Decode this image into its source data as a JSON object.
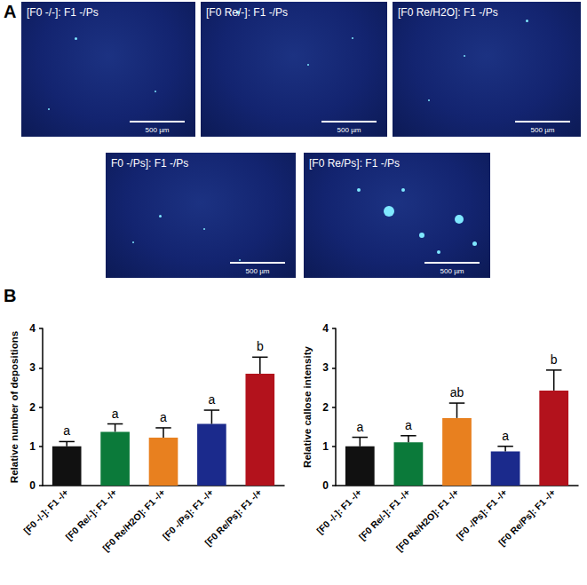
{
  "panel_a": {
    "label": "A",
    "images": [
      "[F0 -/-]: F1 -/Ps",
      "[F0 Re/-]: F1 -/Ps",
      "[F0 Re/H2O]: F1 -/Ps",
      "F0 -/Ps]: F1 -/Ps",
      "[F0 Re/Ps]: F1 -/Ps"
    ],
    "scale_bar": "500 µm"
  },
  "panel_b": {
    "label": "B"
  },
  "chart_data": [
    {
      "type": "bar",
      "y_label": "Relative number of depositions",
      "categories": [
        "[F0 -/-]: F1 -/+",
        "[F0 Re/-]: F1 -/+",
        "[F0 Re/H2O]: F1 -/+",
        "[F0 -/Ps]: F1 -/+",
        "[F0 Re/Ps]: F1 -/+"
      ],
      "values": [
        1.0,
        1.37,
        1.22,
        1.57,
        2.85
      ],
      "errors": [
        0.12,
        0.2,
        0.25,
        0.35,
        0.42
      ],
      "significance": [
        "a",
        "a",
        "a",
        "a",
        "b"
      ],
      "colors": [
        "#111111",
        "#0b7a3a",
        "#e8801f",
        "#1b2a8c",
        "#b3121c"
      ],
      "ylim": [
        0,
        4
      ],
      "yticks": [
        0,
        1,
        2,
        3,
        4
      ],
      "grid": false
    },
    {
      "type": "bar",
      "y_label": "Relative callose intensity",
      "categories": [
        "[F0 -/-]: F1 -/+",
        "[F0 Re/-]: F1 -/+",
        "[F0 Re/H2O]: F1 -/+",
        "[F0 -/Ps]: F1 -/+",
        "[F0 Re/Ps]: F1 -/+"
      ],
      "values": [
        1.0,
        1.1,
        1.72,
        0.87,
        2.42
      ],
      "errors": [
        0.23,
        0.17,
        0.38,
        0.13,
        0.52
      ],
      "significance": [
        "a",
        "a",
        "ab",
        "a",
        "b"
      ],
      "colors": [
        "#111111",
        "#0b7a3a",
        "#e8801f",
        "#1b2a8c",
        "#b3121c"
      ],
      "ylim": [
        0,
        4
      ],
      "yticks": [
        0,
        1,
        2,
        3,
        4
      ],
      "grid": false
    }
  ]
}
